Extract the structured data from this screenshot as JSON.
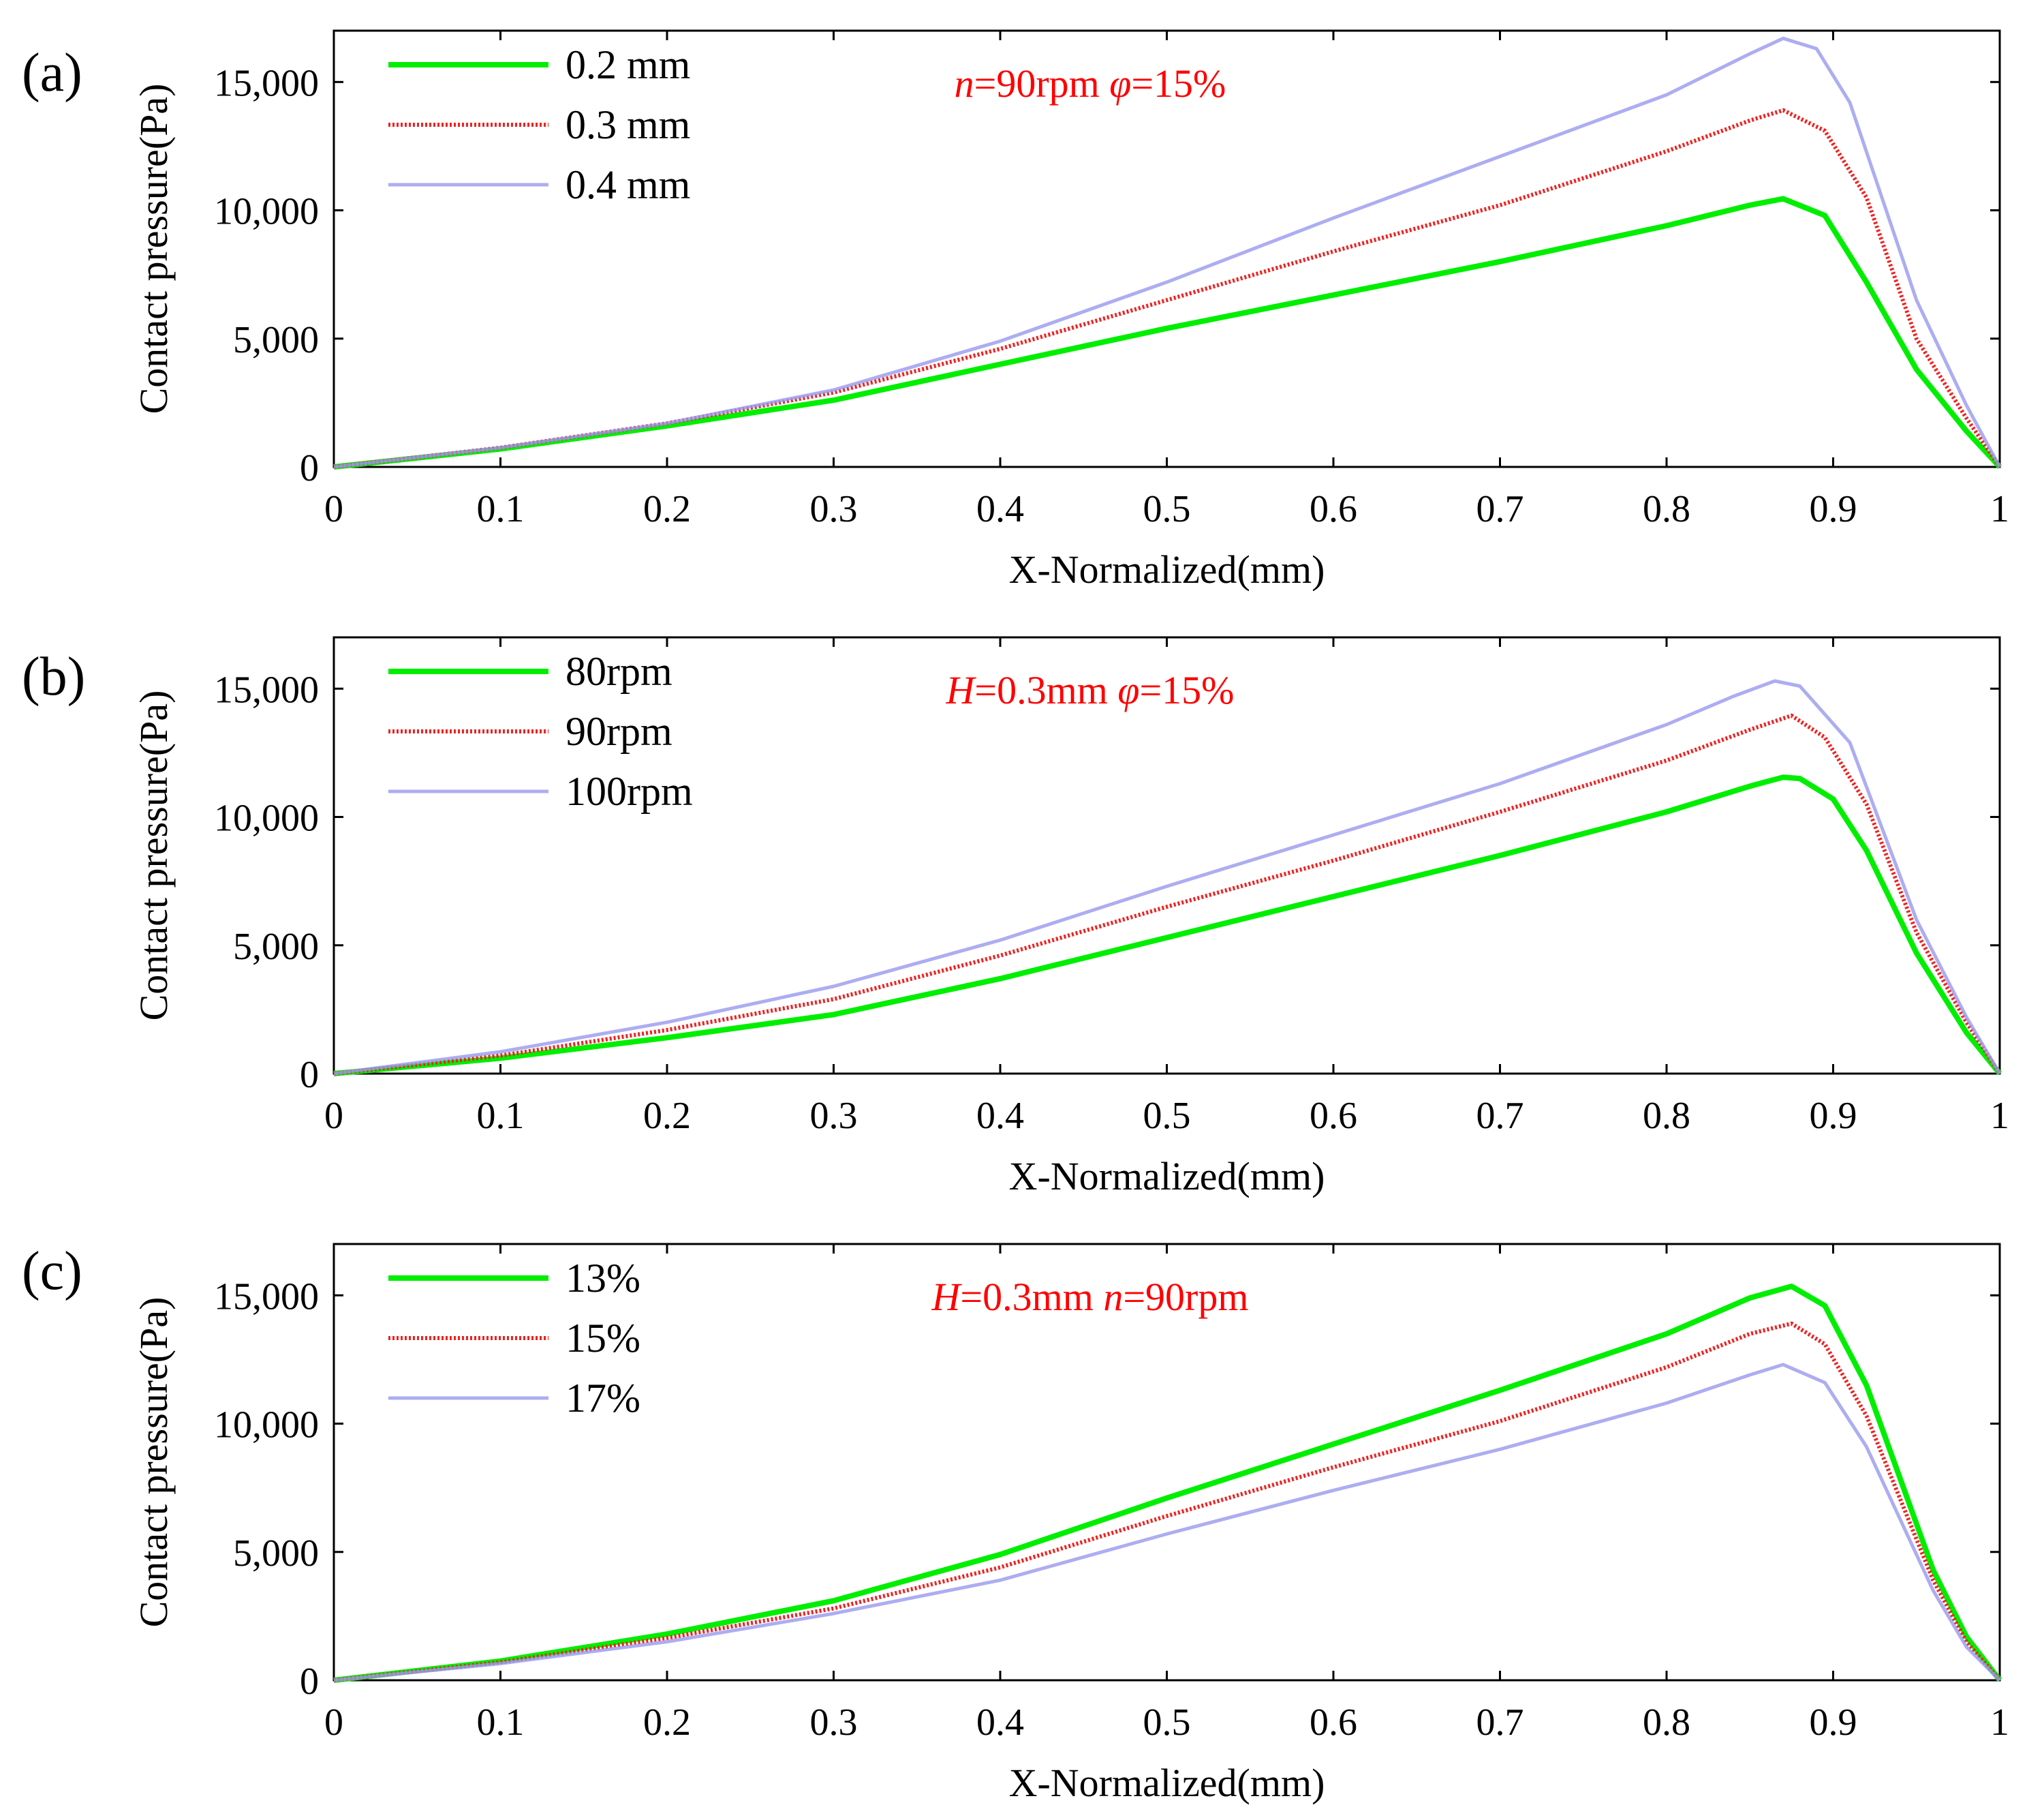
{
  "chart_data": [
    {
      "type": "line",
      "panel_label": "(a)",
      "annotation": {
        "var1": "n",
        "val1": "=90rpm",
        "var2": "φ",
        "val2": "=15%"
      },
      "xlabel": "X-Normalized(mm)",
      "ylabel": "Contact pressure(Pa)",
      "xlim": [
        0,
        1
      ],
      "ylim": [
        0,
        17000
      ],
      "x_ticks": [
        0,
        0.1,
        0.2,
        0.3,
        0.4,
        0.5,
        0.6,
        0.7,
        0.8,
        0.9,
        1
      ],
      "x_tick_labels": [
        "0",
        "0.1",
        "0.2",
        "0.3",
        "0.4",
        "0.5",
        "0.6",
        "0.7",
        "0.8",
        "0.9",
        "1"
      ],
      "y_ticks": [
        0,
        5000,
        10000,
        15000
      ],
      "y_tick_labels": [
        "0",
        "5,000",
        "10,000",
        "15,000"
      ],
      "legend": "top-left",
      "series": [
        {
          "name": "0.2 mm",
          "color": "#00ee00",
          "style": "solid",
          "x": [
            0,
            0.1,
            0.2,
            0.3,
            0.4,
            0.5,
            0.6,
            0.7,
            0.8,
            0.85,
            0.87,
            0.895,
            0.92,
            0.95,
            0.98,
            1
          ],
          "y": [
            0,
            700,
            1600,
            2600,
            4000,
            5400,
            6700,
            8000,
            9400,
            10200,
            10450,
            9800,
            7200,
            3800,
            1400,
            0
          ]
        },
        {
          "name": "0.3 mm",
          "color": "#ee2222",
          "style": "dotted",
          "x": [
            0,
            0.1,
            0.2,
            0.3,
            0.4,
            0.5,
            0.6,
            0.7,
            0.8,
            0.85,
            0.87,
            0.895,
            0.92,
            0.95,
            0.98,
            1
          ],
          "y": [
            0,
            750,
            1700,
            2900,
            4600,
            6500,
            8400,
            10200,
            12300,
            13500,
            13900,
            13100,
            10500,
            5000,
            1900,
            0
          ]
        },
        {
          "name": "0.4 mm",
          "color": "#9999ee",
          "style": "solid",
          "x": [
            0,
            0.1,
            0.2,
            0.3,
            0.4,
            0.5,
            0.6,
            0.7,
            0.8,
            0.85,
            0.87,
            0.89,
            0.91,
            0.95,
            0.98,
            1
          ],
          "y": [
            0,
            750,
            1700,
            3000,
            4900,
            7200,
            9700,
            12100,
            14500,
            16100,
            16700,
            16300,
            14200,
            6500,
            2400,
            0
          ]
        }
      ]
    },
    {
      "type": "line",
      "panel_label": "(b)",
      "annotation": {
        "var1": "H",
        "val1": "=0.3mm",
        "var2": "φ",
        "val2": "=15%"
      },
      "xlabel": "X-Normalized(mm)",
      "ylabel": "Contact pressure(Pa)",
      "xlim": [
        0,
        1
      ],
      "ylim": [
        0,
        17000
      ],
      "x_ticks": [
        0,
        0.1,
        0.2,
        0.3,
        0.4,
        0.5,
        0.6,
        0.7,
        0.8,
        0.9,
        1
      ],
      "x_tick_labels": [
        "0",
        "0.1",
        "0.2",
        "0.3",
        "0.4",
        "0.5",
        "0.6",
        "0.7",
        "0.8",
        "0.9",
        "1"
      ],
      "y_ticks": [
        0,
        5000,
        10000,
        15000
      ],
      "y_tick_labels": [
        "0",
        "5,000",
        "10,000",
        "15,000"
      ],
      "legend": "top-left",
      "series": [
        {
          "name": "80rpm",
          "color": "#00ee00",
          "style": "solid",
          "x": [
            0,
            0.1,
            0.2,
            0.3,
            0.4,
            0.5,
            0.6,
            0.7,
            0.8,
            0.85,
            0.87,
            0.88,
            0.9,
            0.92,
            0.95,
            0.98,
            1
          ],
          "y": [
            0,
            600,
            1400,
            2300,
            3700,
            5300,
            6900,
            8500,
            10200,
            11200,
            11550,
            11500,
            10700,
            8700,
            4700,
            1600,
            0
          ]
        },
        {
          "name": "90rpm",
          "color": "#ee2222",
          "style": "dotted",
          "x": [
            0,
            0.1,
            0.2,
            0.3,
            0.4,
            0.5,
            0.6,
            0.7,
            0.8,
            0.85,
            0.875,
            0.895,
            0.92,
            0.95,
            0.98,
            1
          ],
          "y": [
            0,
            700,
            1700,
            2900,
            4600,
            6500,
            8300,
            10200,
            12200,
            13400,
            13950,
            13100,
            10500,
            5500,
            2000,
            0
          ]
        },
        {
          "name": "100rpm",
          "color": "#9999ee",
          "style": "solid",
          "x": [
            0,
            0.1,
            0.2,
            0.3,
            0.4,
            0.5,
            0.6,
            0.7,
            0.8,
            0.84,
            0.865,
            0.88,
            0.91,
            0.95,
            0.98,
            1
          ],
          "y": [
            0,
            850,
            2000,
            3400,
            5200,
            7300,
            9300,
            11300,
            13600,
            14700,
            15300,
            15100,
            12900,
            6000,
            2200,
            0
          ]
        }
      ]
    },
    {
      "type": "line",
      "panel_label": "(c)",
      "annotation": {
        "var1": "H",
        "val1": "=0.3mm",
        "var2": "n",
        "val2": "=90rpm"
      },
      "xlabel": "X-Normalized(mm)",
      "ylabel": "Contact pressure(Pa)",
      "xlim": [
        0,
        1
      ],
      "ylim": [
        0,
        17000
      ],
      "x_ticks": [
        0,
        0.1,
        0.2,
        0.3,
        0.4,
        0.5,
        0.6,
        0.7,
        0.8,
        0.9,
        1
      ],
      "x_tick_labels": [
        "0",
        "0.1",
        "0.2",
        "0.3",
        "0.4",
        "0.5",
        "0.6",
        "0.7",
        "0.8",
        "0.9",
        "1"
      ],
      "y_ticks": [
        0,
        5000,
        10000,
        15000
      ],
      "y_tick_labels": [
        "0",
        "5,000",
        "10,000",
        "15,000"
      ],
      "legend": "top-left",
      "series": [
        {
          "name": "13%",
          "color": "#00ee00",
          "style": "solid",
          "x": [
            0,
            0.1,
            0.2,
            0.3,
            0.4,
            0.5,
            0.6,
            0.7,
            0.8,
            0.85,
            0.875,
            0.895,
            0.92,
            0.96,
            0.98,
            1
          ],
          "y": [
            0,
            750,
            1800,
            3100,
            4900,
            7100,
            9200,
            11300,
            13500,
            14900,
            15350,
            14600,
            11500,
            4300,
            1700,
            0
          ]
        },
        {
          "name": "15%",
          "color": "#ee2222",
          "style": "dotted",
          "x": [
            0,
            0.1,
            0.2,
            0.3,
            0.4,
            0.5,
            0.6,
            0.7,
            0.8,
            0.85,
            0.875,
            0.895,
            0.92,
            0.96,
            0.98,
            1
          ],
          "y": [
            0,
            700,
            1650,
            2800,
            4400,
            6400,
            8300,
            10100,
            12200,
            13500,
            13900,
            13100,
            10300,
            3900,
            1500,
            0
          ]
        },
        {
          "name": "17%",
          "color": "#9999ee",
          "style": "solid",
          "x": [
            0,
            0.1,
            0.2,
            0.3,
            0.4,
            0.5,
            0.6,
            0.7,
            0.8,
            0.85,
            0.87,
            0.895,
            0.92,
            0.96,
            0.98,
            1
          ],
          "y": [
            0,
            650,
            1500,
            2600,
            3900,
            5700,
            7400,
            9000,
            10800,
            11900,
            12300,
            11600,
            9100,
            3500,
            1300,
            0
          ]
        }
      ]
    }
  ]
}
